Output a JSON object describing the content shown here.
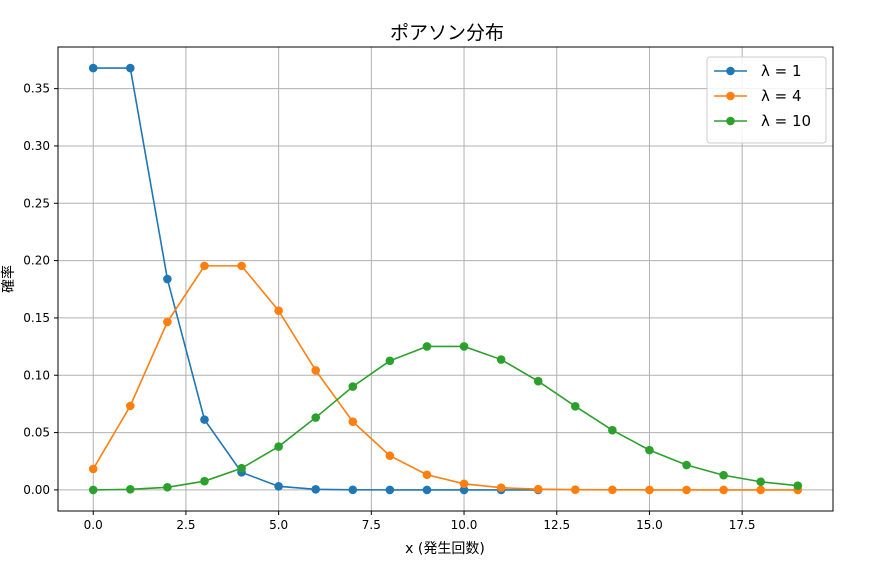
{
  "chart_data": {
    "type": "line",
    "title": "ポアソン分布",
    "xlabel": "x (発生回数)",
    "ylabel": "確率",
    "xlim": [
      -0.95,
      19.95
    ],
    "ylim": [
      -0.0184,
      0.3863
    ],
    "xticks": [
      "0.0",
      "2.5",
      "5.0",
      "7.5",
      "10.0",
      "12.5",
      "15.0",
      "17.5"
    ],
    "xtick_values": [
      0,
      2.5,
      5,
      7.5,
      10,
      12.5,
      15,
      17.5
    ],
    "yticks": [
      "0.00",
      "0.05",
      "0.10",
      "0.15",
      "0.20",
      "0.25",
      "0.30",
      "0.35"
    ],
    "ytick_values": [
      0,
      0.05,
      0.1,
      0.15,
      0.2,
      0.25,
      0.3,
      0.35
    ],
    "grid": true,
    "legend_position": "top-right",
    "x": [
      0,
      1,
      2,
      3,
      4,
      5,
      6,
      7,
      8,
      9,
      10,
      11,
      12,
      13,
      14,
      15,
      16,
      17,
      18,
      19
    ],
    "series": [
      {
        "name": "λ = 1",
        "color": "#1f77b4",
        "x": [
          0,
          1,
          2,
          3,
          4,
          5,
          6,
          7,
          8,
          9,
          10,
          11,
          12
        ],
        "values": [
          0.3679,
          0.3679,
          0.1839,
          0.0613,
          0.0153,
          0.0031,
          0.0005,
          0.0001,
          0.0,
          0.0,
          0.0,
          0.0,
          0.0
        ]
      },
      {
        "name": "λ = 4",
        "color": "#ff7f0e",
        "x": [
          0,
          1,
          2,
          3,
          4,
          5,
          6,
          7,
          8,
          9,
          10,
          11,
          12,
          13,
          14,
          15,
          16,
          17,
          18,
          19
        ],
        "values": [
          0.0183,
          0.0733,
          0.1465,
          0.1954,
          0.1954,
          0.1563,
          0.1042,
          0.0595,
          0.0298,
          0.0132,
          0.0053,
          0.0019,
          0.0006,
          0.0002,
          0.0001,
          0.0,
          0.0,
          0.0,
          0.0,
          0.0
        ]
      },
      {
        "name": "λ = 10",
        "color": "#2ca02c",
        "x": [
          0,
          1,
          2,
          3,
          4,
          5,
          6,
          7,
          8,
          9,
          10,
          11,
          12,
          13,
          14,
          15,
          16,
          17,
          18,
          19
        ],
        "values": [
          0.0,
          0.0005,
          0.0023,
          0.0076,
          0.0189,
          0.0378,
          0.0631,
          0.0901,
          0.1126,
          0.1251,
          0.1251,
          0.1137,
          0.0948,
          0.0729,
          0.0521,
          0.0347,
          0.0217,
          0.0128,
          0.0071,
          0.0037
        ]
      }
    ]
  }
}
